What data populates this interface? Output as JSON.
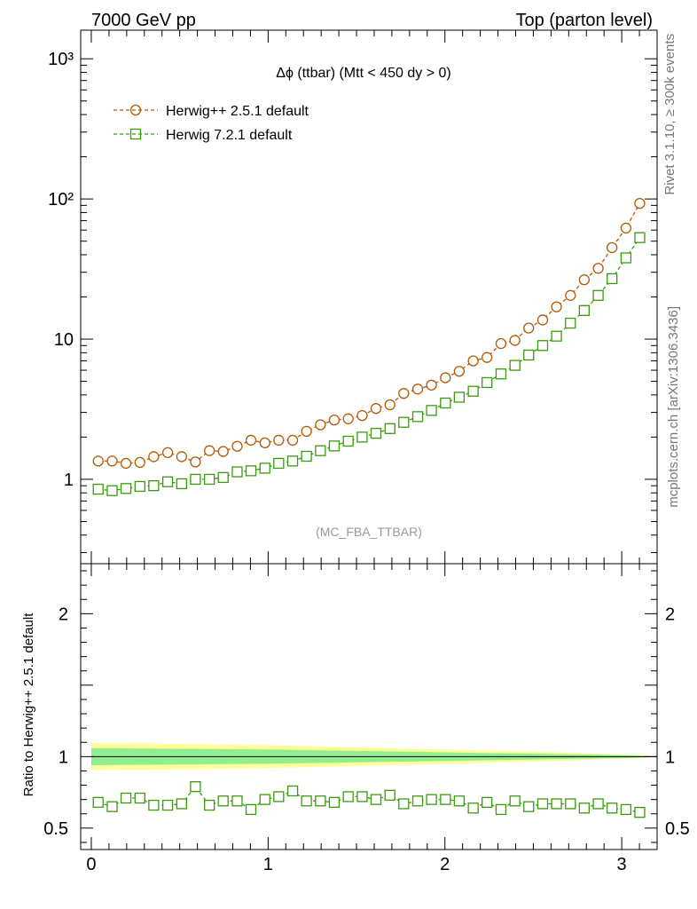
{
  "header": {
    "left": "7000 GeV pp",
    "right": "Top (parton level)"
  },
  "side": {
    "rivet": "Rivet 3.1.10, ≥ 300k events",
    "mcplots": "mcplots.cern.ch [arXiv:1306.3436]"
  },
  "colors": {
    "herwigpp": "#b35900",
    "herwig7": "#3a9b0f",
    "band_inner": "#90ee90",
    "band_outer": "#ffff99"
  },
  "chart_data": [
    {
      "type": "line",
      "panel": "main",
      "title": "Δϕ (ttbar) (Mtt < 450 dy > 0)",
      "watermark": "(MC_FBA_TTBAR)",
      "yscale": "log",
      "ylim": [
        0.25,
        1600
      ],
      "xlim": [
        -0.06,
        3.2
      ],
      "yticks": [
        {
          "value": 1000,
          "label": "10³"
        },
        {
          "value": 100,
          "label": "10²"
        },
        {
          "value": 10,
          "label": "10"
        },
        {
          "value": 1,
          "label": "1"
        }
      ],
      "legend_position": "top-left",
      "x": [
        0.039,
        0.118,
        0.196,
        0.275,
        0.353,
        0.432,
        0.511,
        0.589,
        0.668,
        0.746,
        0.825,
        0.903,
        0.982,
        1.06,
        1.139,
        1.217,
        1.296,
        1.374,
        1.453,
        1.532,
        1.61,
        1.689,
        1.767,
        1.846,
        1.924,
        2.003,
        2.081,
        2.16,
        2.238,
        2.317,
        2.396,
        2.474,
        2.553,
        2.631,
        2.71,
        2.788,
        2.867,
        2.945,
        3.024,
        3.102
      ],
      "series": [
        {
          "name": "Herwig++ 2.5.1 default",
          "marker": "circle",
          "values": [
            1.35,
            1.35,
            1.3,
            1.32,
            1.45,
            1.55,
            1.45,
            1.33,
            1.6,
            1.58,
            1.72,
            1.9,
            1.82,
            1.9,
            1.9,
            2.2,
            2.45,
            2.65,
            2.7,
            2.85,
            3.2,
            3.4,
            4.1,
            4.4,
            4.7,
            5.3,
            5.9,
            7.0,
            7.4,
            9.3,
            9.8,
            12.0,
            13.7,
            17.0,
            20.5,
            26.5,
            32.0,
            45.0,
            62.0,
            93.0
          ]
        },
        {
          "name": "Herwig 7.2.1 default",
          "marker": "square",
          "values": [
            0.85,
            0.83,
            0.86,
            0.89,
            0.9,
            0.96,
            0.93,
            1.0,
            1.0,
            1.03,
            1.13,
            1.15,
            1.2,
            1.3,
            1.35,
            1.46,
            1.6,
            1.73,
            1.87,
            2.0,
            2.13,
            2.3,
            2.55,
            2.8,
            3.1,
            3.5,
            3.85,
            4.25,
            4.9,
            5.65,
            6.5,
            7.7,
            9.0,
            10.5,
            13.0,
            16.0,
            20.5,
            27.0,
            38.0,
            53.0
          ]
        }
      ]
    },
    {
      "type": "line",
      "panel": "ratio",
      "ylabel": "Ratio to Herwig++ 2.5.1 default",
      "ylim": [
        0.35,
        2.35
      ],
      "xlim": [
        -0.06,
        3.2
      ],
      "yticks": [
        {
          "value": 0.5,
          "label": "0.5"
        },
        {
          "value": 1,
          "label": "1"
        },
        {
          "value": 2,
          "label": "2"
        }
      ],
      "xticks": [
        {
          "value": 0,
          "label": "0"
        },
        {
          "value": 1,
          "label": "1"
        },
        {
          "value": 2,
          "label": "2"
        },
        {
          "value": 3,
          "label": "3"
        }
      ],
      "band_x": [
        0.0,
        0.5,
        1.0,
        1.5,
        2.0,
        2.5,
        3.0,
        3.14
      ],
      "band_inner": [
        0.06,
        0.055,
        0.05,
        0.04,
        0.03,
        0.02,
        0.01,
        0.005
      ],
      "band_outer": [
        0.095,
        0.09,
        0.08,
        0.065,
        0.05,
        0.035,
        0.015,
        0.008
      ],
      "series": [
        {
          "name": "Herwig 7.2.1 default",
          "marker": "square",
          "values": [
            0.68,
            0.65,
            0.71,
            0.71,
            0.66,
            0.66,
            0.67,
            0.79,
            0.66,
            0.69,
            0.69,
            0.63,
            0.7,
            0.72,
            0.76,
            0.69,
            0.69,
            0.68,
            0.72,
            0.72,
            0.7,
            0.73,
            0.67,
            0.69,
            0.7,
            0.7,
            0.69,
            0.64,
            0.68,
            0.63,
            0.69,
            0.65,
            0.67,
            0.67,
            0.67,
            0.64,
            0.67,
            0.64,
            0.63,
            0.61
          ]
        }
      ]
    }
  ]
}
